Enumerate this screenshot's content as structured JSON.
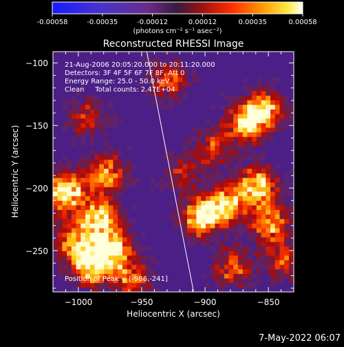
{
  "colorbar": {
    "tick_labels": [
      "-0.00058",
      "-0.00035",
      "-0.00012",
      "0.00012",
      "0.00035",
      "0.00058"
    ],
    "range": [
      -0.00058,
      0.00058
    ],
    "unit_label": "(photons cm⁻² s⁻¹ asec⁻²)"
  },
  "chart_data": {
    "type": "heatmap",
    "title": "Reconstructed RHESSI Image",
    "xlabel": "Heliocentric X (arcsec)",
    "ylabel": "Heliocentric Y (arcsec)",
    "xlim": [
      -1020,
      -830
    ],
    "ylim": [
      -283,
      -91
    ],
    "x_ticks": [
      -1000,
      -950,
      -900,
      -850
    ],
    "y_ticks": [
      -100,
      -150,
      -200,
      -250
    ],
    "x_tick_labels": [
      "−1000",
      "−950",
      "−900",
      "−850"
    ],
    "y_tick_labels": [
      "−100",
      "−150",
      "−200",
      "−250"
    ],
    "annotations": [
      "21-Aug-2006 20:05:20.000 to 20:11:20.000",
      "Detectors: 3F 4F 5F 6F 7F 8F, Att 0",
      "Energy Range: 25.0 - 50.0 keV",
      "Clean     Total counts: 2.47E+04"
    ],
    "peak_label": "Position of Peak = [-986,-241]",
    "limb_line": [
      [
        -946,
        -91
      ],
      [
        -909,
        -283
      ]
    ],
    "bright_regions": [
      {
        "x": -1012,
        "y": -205,
        "level": 0.95
      },
      {
        "x": -985,
        "y": -225,
        "level": 0.8
      },
      {
        "x": -980,
        "y": -190,
        "level": 0.7
      },
      {
        "x": -975,
        "y": -250,
        "level": 0.9
      },
      {
        "x": -992,
        "y": -265,
        "level": 0.75
      },
      {
        "x": -1005,
        "y": -245,
        "level": 0.7
      },
      {
        "x": -995,
        "y": -145,
        "level": 0.45
      },
      {
        "x": -960,
        "y": -275,
        "level": 0.55
      },
      {
        "x": -905,
        "y": -225,
        "level": 0.85
      },
      {
        "x": -885,
        "y": -215,
        "level": 0.75
      },
      {
        "x": -870,
        "y": -150,
        "level": 0.7
      },
      {
        "x": -855,
        "y": -140,
        "level": 0.75
      },
      {
        "x": -860,
        "y": -200,
        "level": 0.85
      },
      {
        "x": -850,
        "y": -230,
        "level": 0.7
      },
      {
        "x": -840,
        "y": -260,
        "level": 0.5
      },
      {
        "x": -880,
        "y": -265,
        "level": 0.55
      },
      {
        "x": -930,
        "y": -115,
        "level": 0.5
      },
      {
        "x": -895,
        "y": -170,
        "level": 0.45
      },
      {
        "x": -920,
        "y": -190,
        "level": 0.35
      }
    ]
  },
  "footer_timestamp": "7-May-2022 06:07"
}
